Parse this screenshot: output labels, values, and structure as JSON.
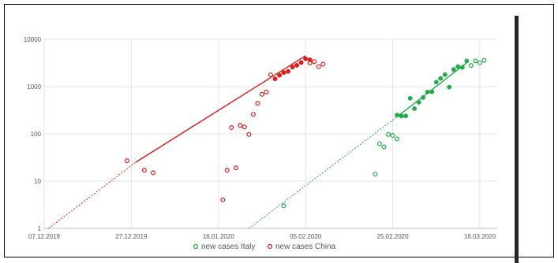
{
  "chart_data": {
    "type": "scatter",
    "title": "",
    "xlabel": "",
    "ylabel": "",
    "yscale": "log",
    "ylim": [
      1,
      10000
    ],
    "xlim": [
      "2019-12-07",
      "2020-03-20"
    ],
    "grid": true,
    "legend_position": "bottom",
    "x_ticks": [
      "07.12.2019",
      "27.12.2019",
      "16.01.2020",
      "05.02.2020",
      "25.02.2020",
      "16.03.2020"
    ],
    "x_tick_dates": [
      "2019-12-07",
      "2019-12-27",
      "2020-01-16",
      "2020-02-05",
      "2020-02-25",
      "2020-03-16"
    ],
    "y_ticks": [
      "1",
      "10",
      "100",
      "1000",
      "10000"
    ],
    "y_tick_values": [
      1,
      10,
      100,
      1000,
      10000
    ],
    "series": [
      {
        "name": "new cases Italy",
        "color": "#22aa4b",
        "marker": "circle",
        "points_open": [
          [
            "2020-01-31",
            3
          ],
          [
            "2020-02-21",
            14
          ],
          [
            "2020-02-22",
            62
          ],
          [
            "2020-02-23",
            53
          ],
          [
            "2020-02-24",
            97
          ],
          [
            "2020-02-25",
            93
          ],
          [
            "2020-02-26",
            78
          ],
          [
            "2020-03-14",
            2800
          ],
          [
            "2020-03-15",
            3500
          ],
          [
            "2020-03-16",
            3200
          ],
          [
            "2020-03-17",
            3600
          ]
        ],
        "points_filled": [
          [
            "2020-02-26",
            250
          ],
          [
            "2020-02-27",
            238
          ],
          [
            "2020-02-28",
            240
          ],
          [
            "2020-02-29",
            566
          ],
          [
            "2020-03-01",
            342
          ],
          [
            "2020-03-02",
            466
          ],
          [
            "2020-03-03",
            587
          ],
          [
            "2020-03-04",
            769
          ],
          [
            "2020-03-05",
            778
          ],
          [
            "2020-03-06",
            1247
          ],
          [
            "2020-03-07",
            1492
          ],
          [
            "2020-03-08",
            1797
          ],
          [
            "2020-03-09",
            977
          ],
          [
            "2020-03-10",
            2313
          ],
          [
            "2020-03-11",
            2651
          ],
          [
            "2020-03-12",
            2547
          ],
          [
            "2020-03-13",
            3497
          ]
        ],
        "trend_solid": [
          [
            "2020-02-26",
            230
          ],
          [
            "2020-03-13",
            3200
          ]
        ],
        "trend_dashed": [
          [
            "2020-01-23",
            1
          ],
          [
            "2020-02-26",
            230
          ]
        ]
      },
      {
        "name": "new cases China",
        "color": "#dd1c1c",
        "marker": "circle",
        "points_open": [
          [
            "2019-12-26",
            27
          ],
          [
            "2019-12-30",
            17
          ],
          [
            "2020-01-01",
            15
          ],
          [
            "2020-01-17",
            4
          ],
          [
            "2020-01-18",
            17
          ],
          [
            "2020-01-19",
            136
          ],
          [
            "2020-01-20",
            19
          ],
          [
            "2020-01-21",
            151
          ],
          [
            "2020-01-22",
            140
          ],
          [
            "2020-01-23",
            97
          ],
          [
            "2020-01-24",
            259
          ],
          [
            "2020-01-25",
            444
          ],
          [
            "2020-01-26",
            688
          ],
          [
            "2020-01-27",
            769
          ],
          [
            "2020-01-28",
            1771
          ],
          [
            "2020-02-06",
            3151
          ],
          [
            "2020-02-07",
            3387
          ],
          [
            "2020-02-08",
            2653
          ],
          [
            "2020-02-09",
            2984
          ]
        ],
        "points_filled": [
          [
            "2020-01-29",
            1459
          ],
          [
            "2020-01-30",
            1737
          ],
          [
            "2020-01-31",
            1982
          ],
          [
            "2020-02-01",
            2102
          ],
          [
            "2020-02-02",
            2590
          ],
          [
            "2020-02-03",
            2829
          ],
          [
            "2020-02-04",
            3235
          ],
          [
            "2020-02-05",
            3887
          ],
          [
            "2020-02-06",
            3694
          ]
        ],
        "trend_solid": [
          [
            "2019-12-28",
            25
          ],
          [
            "2020-02-05",
            4500
          ]
        ],
        "trend_dashed": [
          [
            "2019-12-08",
            1
          ],
          [
            "2019-12-28",
            25
          ]
        ]
      }
    ]
  }
}
